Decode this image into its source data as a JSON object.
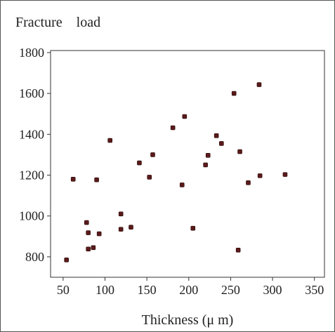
{
  "chart_data": {
    "type": "scatter",
    "title": "Fracture    load",
    "xlabel": "Thickness (μ m)",
    "ylabel": "",
    "xlim": [
      35,
      362
    ],
    "ylim": [
      700,
      1810
    ],
    "xticks": [
      50,
      100,
      150,
      200,
      250,
      300,
      350
    ],
    "yticks": [
      800,
      1000,
      1200,
      1400,
      1600,
      1800
    ],
    "grid": false,
    "legend": "none",
    "marker_color": "#5a1a1a",
    "points": [
      {
        "x": 54,
        "y": 785
      },
      {
        "x": 62,
        "y": 1180
      },
      {
        "x": 78,
        "y": 968
      },
      {
        "x": 80,
        "y": 918
      },
      {
        "x": 80,
        "y": 838
      },
      {
        "x": 86,
        "y": 845
      },
      {
        "x": 90,
        "y": 1177
      },
      {
        "x": 93,
        "y": 913
      },
      {
        "x": 106,
        "y": 1370
      },
      {
        "x": 119,
        "y": 1010
      },
      {
        "x": 119,
        "y": 935
      },
      {
        "x": 131,
        "y": 945
      },
      {
        "x": 141,
        "y": 1260
      },
      {
        "x": 153,
        "y": 1190
      },
      {
        "x": 157,
        "y": 1300
      },
      {
        "x": 181,
        "y": 1432
      },
      {
        "x": 192,
        "y": 1152
      },
      {
        "x": 195,
        "y": 1487
      },
      {
        "x": 205,
        "y": 940
      },
      {
        "x": 220,
        "y": 1250
      },
      {
        "x": 223,
        "y": 1297
      },
      {
        "x": 233,
        "y": 1393
      },
      {
        "x": 239,
        "y": 1355
      },
      {
        "x": 254,
        "y": 1600
      },
      {
        "x": 259,
        "y": 833
      },
      {
        "x": 261,
        "y": 1315
      },
      {
        "x": 271,
        "y": 1163
      },
      {
        "x": 284,
        "y": 1643
      },
      {
        "x": 285,
        "y": 1197
      },
      {
        "x": 315,
        "y": 1203
      }
    ]
  }
}
